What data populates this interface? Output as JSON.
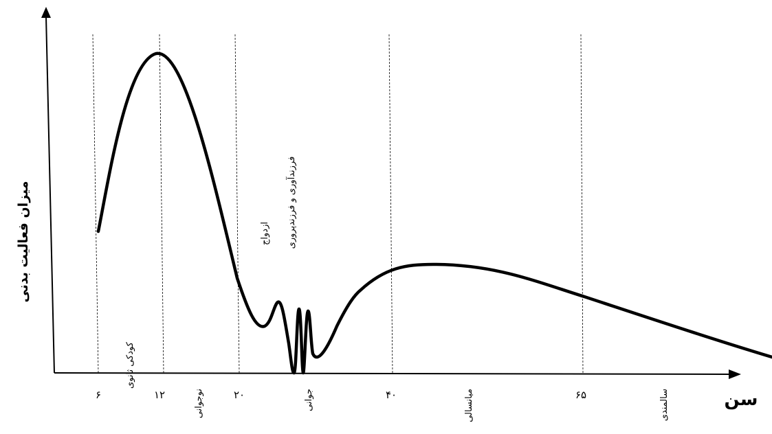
{
  "chart_data": {
    "type": "line",
    "ylabel": "میزان فعالیت بدنی",
    "xlabel": "سن",
    "x_ticks": [
      {
        "value": 6,
        "label": "۶"
      },
      {
        "value": 12,
        "label": "۱۲"
      },
      {
        "value": 20,
        "label": "۲۰"
      },
      {
        "value": 40,
        "label": "۴۰"
      },
      {
        "value": 65,
        "label": "۶۵"
      }
    ],
    "stages": [
      {
        "label": "کودکی ثانوی"
      },
      {
        "label": "نوجوانی"
      },
      {
        "label": "جوانی"
      },
      {
        "label": "میانسالی"
      },
      {
        "label": "سالمندی"
      }
    ],
    "annotations": [
      {
        "label": "ازدواج"
      },
      {
        "label": "فرزندآوری و فرزندپروری"
      }
    ],
    "curve_note": "relative activity level vs age; peak near age 12, dips around 20–28, secondary hump near 44, declining in old age",
    "grid": false
  }
}
